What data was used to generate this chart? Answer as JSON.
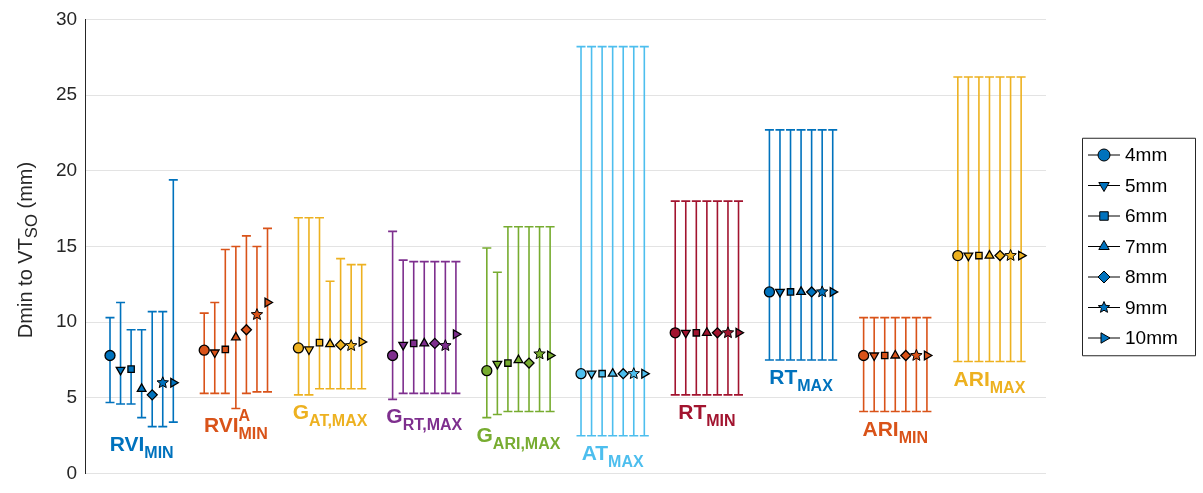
{
  "chart_data": {
    "type": "scatter",
    "ylabel": "Dmin to VT$_{SO}$ (mm)",
    "categories": [
      null,
      null,
      null,
      null,
      null,
      null,
      null,
      null,
      null,
      null
    ],
    "ylim": [
      0,
      30
    ],
    "yticks": [
      0,
      5,
      10,
      15,
      20,
      25,
      30
    ],
    "grid": "y",
    "legend": "right",
    "tick_labels": "y",
    "annotations": [
      "RVI$_{MIN}$",
      "RVI$^{A}$$_{MIN}$",
      "G$_{AT,MAX}$",
      "G$_{RT,MAX}$",
      "G$_{ARI,MAX}$",
      "AT$_{MAX}$",
      "RT$_{MIN}$",
      "RT$_{MAX}$",
      "ARI$_{MIN}$",
      "ARI$_{MAX}$"
    ],
    "series": [
      {
        "name": "4mm",
        "marker": "circle",
        "colors": [
          "#0072bd",
          "#d95319",
          "#edb120",
          "#7e2f8e",
          "#77ac30",
          "#4dbeee",
          "#a2142f",
          "#0072bd",
          "#d95319",
          "#edb120"
        ],
        "values": [
          7.8,
          8.15,
          8.3,
          7.8,
          6.8,
          6.6,
          9.3,
          12.0,
          7.8,
          14.4
        ],
        "errors": [
          [
            4.7,
            10.3
          ],
          [
            5.3,
            10.6
          ],
          [
            5.2,
            16.9
          ],
          [
            4.9,
            16.0
          ],
          [
            3.7,
            14.9
          ],
          [
            2.5,
            28.2
          ],
          [
            5.2,
            18.0
          ],
          [
            7.5,
            22.7
          ],
          [
            4.1,
            10.3
          ],
          [
            7.4,
            26.2
          ]
        ]
      },
      {
        "name": "5mm",
        "marker": "triangle-down",
        "colors": [
          "#0072bd",
          "#d95319",
          "#edb120",
          "#7e2f8e",
          "#77ac30",
          "#4dbeee",
          "#a2142f",
          "#0072bd",
          "#d95319",
          "#edb120"
        ],
        "values": [
          6.85,
          8.0,
          8.2,
          8.5,
          7.25,
          6.6,
          9.3,
          12.0,
          7.8,
          14.4
        ],
        "errors": [
          [
            4.6,
            11.3
          ],
          [
            5.3,
            11.3
          ],
          [
            5.2,
            16.9
          ],
          [
            5.3,
            14.1
          ],
          [
            3.9,
            13.3
          ],
          [
            2.5,
            28.2
          ],
          [
            5.2,
            18.0
          ],
          [
            7.5,
            22.7
          ],
          [
            4.1,
            10.3
          ],
          [
            7.4,
            26.2
          ]
        ]
      },
      {
        "name": "6mm",
        "marker": "square",
        "colors": [
          "#0072bd",
          "#d95319",
          "#edb120",
          "#7e2f8e",
          "#77ac30",
          "#4dbeee",
          "#a2142f",
          "#0072bd",
          "#d95319",
          "#edb120"
        ],
        "values": [
          6.9,
          8.2,
          8.65,
          8.6,
          7.3,
          6.6,
          9.3,
          12.0,
          7.8,
          14.4
        ],
        "errors": [
          [
            4.6,
            9.5
          ],
          [
            5.3,
            14.8
          ],
          [
            5.6,
            16.9
          ],
          [
            5.3,
            14.0
          ],
          [
            4.1,
            16.3
          ],
          [
            2.5,
            28.2
          ],
          [
            5.2,
            18.0
          ],
          [
            7.5,
            22.7
          ],
          [
            4.1,
            10.3
          ],
          [
            7.4,
            26.2
          ]
        ]
      },
      {
        "name": "7mm",
        "marker": "triangle",
        "colors": [
          "#0072bd",
          "#d95319",
          "#edb120",
          "#7e2f8e",
          "#77ac30",
          "#4dbeee",
          "#a2142f",
          "#0072bd",
          "#d95319",
          "#edb120"
        ],
        "values": [
          5.6,
          9.0,
          8.55,
          8.6,
          7.5,
          6.6,
          9.3,
          12.0,
          7.8,
          14.4
        ],
        "errors": [
          [
            3.7,
            9.5
          ],
          [
            4.3,
            15.0
          ],
          [
            5.6,
            12.7
          ],
          [
            5.3,
            14.0
          ],
          [
            4.1,
            16.3
          ],
          [
            2.5,
            28.2
          ],
          [
            5.2,
            18.0
          ],
          [
            7.5,
            22.7
          ],
          [
            4.1,
            10.3
          ],
          [
            7.4,
            26.2
          ]
        ]
      },
      {
        "name": "8mm",
        "marker": "diamond",
        "colors": [
          "#0072bd",
          "#d95319",
          "#edb120",
          "#7e2f8e",
          "#77ac30",
          "#4dbeee",
          "#a2142f",
          "#0072bd",
          "#d95319",
          "#edb120"
        ],
        "values": [
          5.2,
          9.5,
          8.5,
          8.6,
          7.3,
          6.6,
          9.3,
          12.0,
          7.8,
          14.4
        ],
        "errors": [
          [
            3.1,
            10.7
          ],
          [
            5.3,
            15.7
          ],
          [
            5.6,
            14.2
          ],
          [
            5.3,
            14.0
          ],
          [
            4.1,
            16.3
          ],
          [
            2.5,
            28.2
          ],
          [
            5.2,
            18.0
          ],
          [
            7.5,
            22.7
          ],
          [
            4.1,
            10.3
          ],
          [
            7.4,
            26.2
          ]
        ]
      },
      {
        "name": "9mm",
        "marker": "star",
        "colors": [
          "#0072bd",
          "#d95319",
          "#edb120",
          "#7e2f8e",
          "#77ac30",
          "#4dbeee",
          "#a2142f",
          "#0072bd",
          "#d95319",
          "#edb120"
        ],
        "values": [
          6.0,
          10.5,
          8.45,
          8.45,
          7.9,
          6.6,
          9.3,
          12.0,
          7.8,
          14.4
        ],
        "errors": [
          [
            3.1,
            10.7
          ],
          [
            5.4,
            15.0
          ],
          [
            5.6,
            13.8
          ],
          [
            5.3,
            14.0
          ],
          [
            4.1,
            16.3
          ],
          [
            2.5,
            28.2
          ],
          [
            5.2,
            18.0
          ],
          [
            7.5,
            22.7
          ],
          [
            4.1,
            10.3
          ],
          [
            7.4,
            26.2
          ]
        ]
      },
      {
        "name": "10mm",
        "marker": "triangle-right",
        "colors": [
          "#0072bd",
          "#d95319",
          "#edb120",
          "#7e2f8e",
          "#77ac30",
          "#4dbeee",
          "#a2142f",
          "#0072bd",
          "#d95319",
          "#edb120"
        ],
        "values": [
          6.0,
          11.3,
          8.7,
          9.2,
          7.8,
          6.6,
          9.3,
          12.0,
          7.8,
          14.4
        ],
        "errors": [
          [
            3.4,
            19.4
          ],
          [
            5.4,
            16.2
          ],
          [
            5.6,
            13.8
          ],
          [
            5.3,
            14.0
          ],
          [
            4.1,
            16.3
          ],
          [
            2.5,
            28.2
          ],
          [
            5.2,
            18.0
          ],
          [
            7.5,
            22.7
          ],
          [
            4.1,
            10.3
          ],
          [
            7.4,
            26.2
          ]
        ]
      }
    ]
  }
}
